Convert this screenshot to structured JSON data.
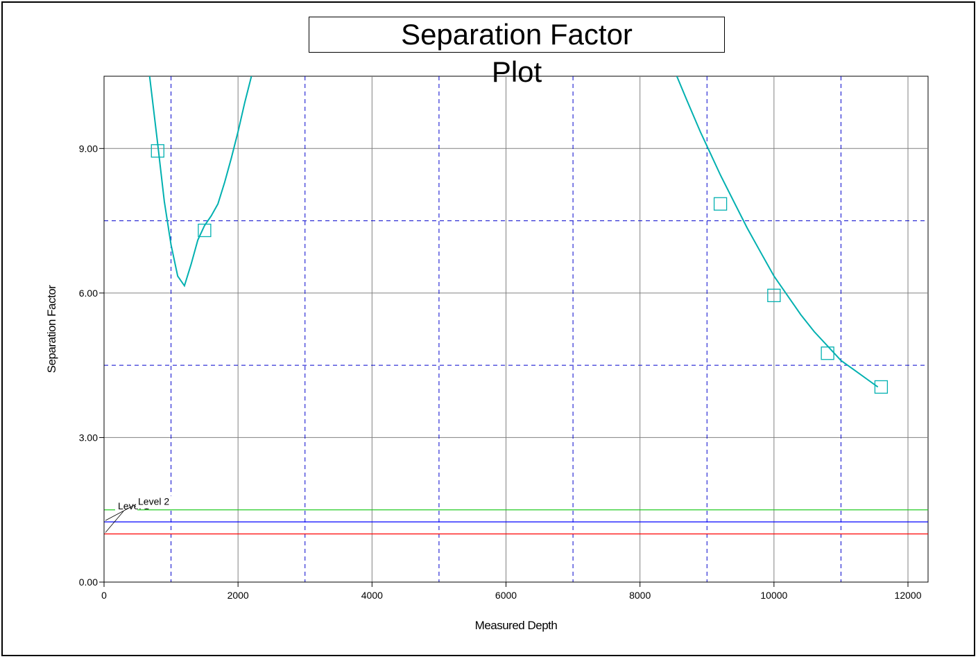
{
  "chart_data": {
    "type": "line",
    "title_line1": "Separation Factor",
    "title_line2": "Plot",
    "xlabel": "Measured Depth",
    "ylabel": "Separation  Factor",
    "xlim": [
      0,
      12300
    ],
    "ylim": [
      0,
      10.5
    ],
    "x_ticks": [
      0,
      2000,
      4000,
      6000,
      8000,
      10000,
      12000
    ],
    "x_tick_labels": [
      "0",
      "2000",
      "4000",
      "6000",
      "8000",
      "10000",
      "12000"
    ],
    "y_ticks": [
      0,
      3,
      6,
      9
    ],
    "y_tick_labels": [
      "0.00",
      "3.00",
      "6.00",
      "9.00"
    ],
    "grid": true,
    "major_grid_color": "#808080",
    "minor_grid_color": "#0000cc",
    "minor_x": [
      1000,
      3000,
      5000,
      7000,
      9000,
      11000
    ],
    "minor_y": [
      4.5,
      7.5
    ],
    "levels": [
      {
        "label": "Level 2",
        "value": 1.5,
        "color": "#22cc22"
      },
      {
        "label": "Level 1",
        "value": 1.25,
        "color": "#0000ff"
      },
      {
        "label": "Level 0",
        "value": 1.0,
        "color": "#ff0000"
      }
    ],
    "series": [
      {
        "color": "#00b0b0",
        "segments": [
          [
            [
              680,
              10.5
            ],
            [
              800,
              9.1
            ],
            [
              900,
              7.9
            ],
            [
              1000,
              7.0
            ],
            [
              1100,
              6.35
            ],
            [
              1200,
              6.15
            ],
            [
              1300,
              6.6
            ],
            [
              1400,
              7.1
            ],
            [
              1500,
              7.4
            ],
            [
              1600,
              7.6
            ],
            [
              1700,
              7.85
            ],
            [
              1800,
              8.3
            ],
            [
              1900,
              8.8
            ],
            [
              2000,
              9.35
            ],
            [
              2100,
              9.95
            ],
            [
              2200,
              10.5
            ]
          ],
          [
            [
              8550,
              10.5
            ],
            [
              8700,
              10.0
            ],
            [
              8900,
              9.35
            ],
            [
              9050,
              8.9
            ],
            [
              9200,
              8.45
            ],
            [
              9400,
              7.9
            ],
            [
              9600,
              7.35
            ],
            [
              9800,
              6.85
            ],
            [
              10000,
              6.35
            ],
            [
              10200,
              5.95
            ],
            [
              10400,
              5.55
            ],
            [
              10600,
              5.2
            ],
            [
              10800,
              4.9
            ],
            [
              11000,
              4.6
            ],
            [
              11200,
              4.4
            ],
            [
              11400,
              4.2
            ],
            [
              11550,
              4.05
            ]
          ]
        ],
        "markers": [
          [
            800,
            8.95
          ],
          [
            1500,
            7.3
          ],
          [
            9200,
            7.85
          ],
          [
            10000,
            5.95
          ],
          [
            10800,
            4.75
          ],
          [
            11600,
            4.05
          ]
        ]
      }
    ]
  }
}
